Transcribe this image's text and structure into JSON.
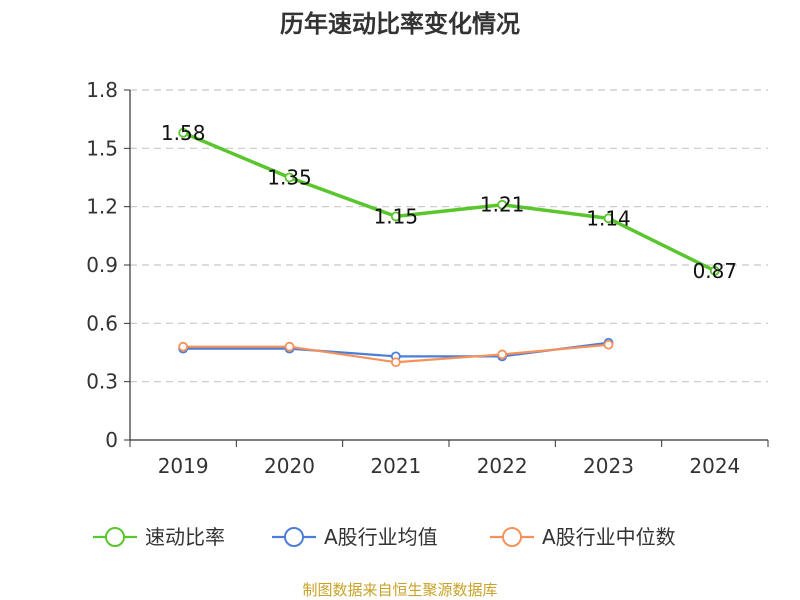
{
  "chart_data": {
    "type": "line",
    "title": "历年速动比率变化情况",
    "categories": [
      "2019",
      "2020",
      "2021",
      "2022",
      "2023",
      "2024"
    ],
    "ylim": [
      0,
      1.8
    ],
    "yticks": [
      "0",
      "0.3",
      "0.6",
      "0.9",
      "1.2",
      "1.5",
      "1.8"
    ],
    "grid": true,
    "legend_position": "bottom",
    "series": [
      {
        "name": "速动比率",
        "color": "#5ac62d",
        "values": [
          1.58,
          1.35,
          1.15,
          1.21,
          1.14,
          0.87
        ],
        "labels": [
          "1.58",
          "1.35",
          "1.15",
          "1.21",
          "1.14",
          "0.87"
        ]
      },
      {
        "name": "A股行业均值",
        "color": "#4c7ed9",
        "values": [
          0.47,
          0.47,
          0.43,
          0.43,
          0.5,
          null
        ]
      },
      {
        "name": "A股行业中位数",
        "color": "#f5915a",
        "values": [
          0.48,
          0.48,
          0.4,
          0.44,
          0.49,
          null
        ]
      }
    ]
  },
  "source_note": "制图数据来自恒生聚源数据库"
}
